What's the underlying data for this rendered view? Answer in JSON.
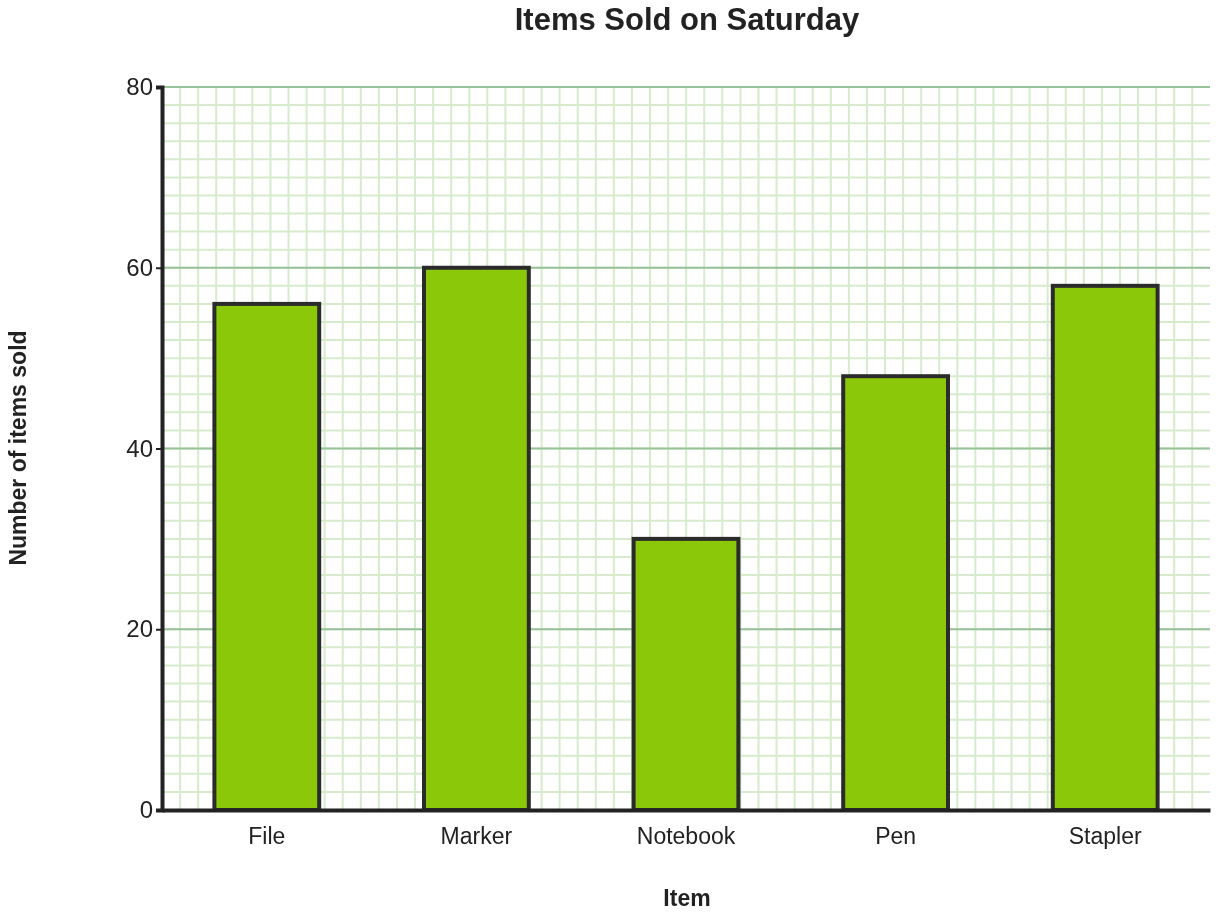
{
  "chart_data": {
    "type": "bar",
    "title": "Items Sold on Saturday",
    "xlabel": "Item",
    "ylabel": "Number of items sold",
    "categories": [
      "File",
      "Marker",
      "Notebook",
      "Pen",
      "Stapler"
    ],
    "values": [
      56,
      60,
      30,
      48,
      58
    ],
    "color": "#8bc80a",
    "ylim": [
      0,
      80
    ],
    "yticks": [
      0,
      20,
      40,
      60,
      80
    ],
    "grid": true
  }
}
